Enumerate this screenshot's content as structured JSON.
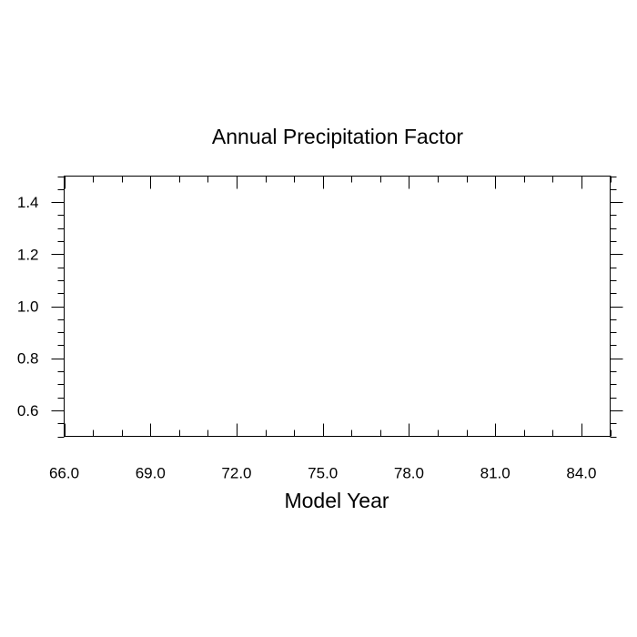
{
  "chart_data": {
    "type": "line",
    "title": "Annual Precipitation Factor",
    "xlabel": "Model Year",
    "ylabel": "",
    "xlim": [
      66.0,
      85.0
    ],
    "ylim": [
      0.5,
      1.5
    ],
    "x_ticks": [
      66.0,
      69.0,
      72.0,
      75.0,
      78.0,
      81.0,
      84.0
    ],
    "x_tick_labels": [
      "66.0",
      "69.0",
      "72.0",
      "75.0",
      "78.0",
      "81.0",
      "84.0"
    ],
    "x_minor_step": 1.0,
    "y_ticks": [
      0.6,
      0.8,
      1.0,
      1.2,
      1.4
    ],
    "y_tick_labels": [
      "0.6",
      "0.8",
      "1.0",
      "1.2",
      "1.4"
    ],
    "y_minor_step": 0.05,
    "grid": false,
    "series": []
  }
}
